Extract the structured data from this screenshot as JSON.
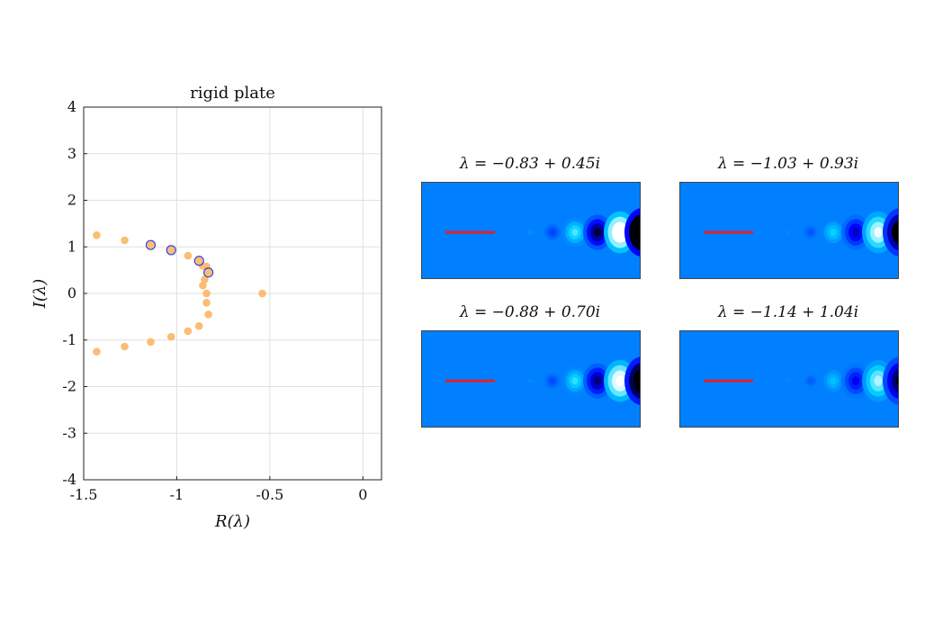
{
  "chart_data": [
    {
      "type": "scatter",
      "title": "rigid plate",
      "xlabel": "R(λ)",
      "ylabel": "I(λ)",
      "xlim": [
        -1.5,
        0.1
      ],
      "ylim": [
        -4,
        4
      ],
      "xticks": [
        -1.5,
        -1,
        -0.5,
        0
      ],
      "xtick_labels": [
        "-1.5",
        "-1",
        "-0.5",
        "0"
      ],
      "yticks": [
        4,
        3,
        2,
        1,
        0,
        -1,
        -2,
        -3,
        -4
      ],
      "ytick_labels": [
        "4",
        "3",
        "2",
        "1",
        "0",
        "-1",
        "-2",
        "-3",
        "-4"
      ],
      "grid": true,
      "series": [
        {
          "color": "#fbbd74",
          "x": [
            -1.43,
            -1.28,
            -1.14,
            -1.03,
            -0.94,
            -0.88,
            -0.86,
            -0.84,
            -0.83,
            -0.85,
            -0.84,
            -0.86,
            -0.84,
            -0.83,
            -0.88,
            -0.94,
            -1.03,
            -1.14,
            -1.28,
            -1.43,
            -0.54
          ],
          "y": [
            1.25,
            1.14,
            1.04,
            0.93,
            0.81,
            0.7,
            0.59,
            0.58,
            0.45,
            0.3,
            0.0,
            0.17,
            -0.2,
            -0.45,
            -0.7,
            -0.81,
            -0.93,
            -1.04,
            -1.14,
            -1.25,
            0.0
          ]
        },
        {
          "color": "#3540d8",
          "marker": "open-circle",
          "x": [
            -1.14,
            -1.03,
            -0.88,
            -0.83
          ],
          "y": [
            1.04,
            0.93,
            0.7,
            0.45
          ]
        }
      ]
    },
    {
      "type": "heatmap",
      "panels": [
        {
          "title": "λ = −0.83 + 0.45i",
          "peak": 0.92
        },
        {
          "title": "λ = −1.03 + 0.93i",
          "peak": 0.78
        },
        {
          "title": "λ = −0.88 + 0.70i",
          "peak": 0.86
        },
        {
          "title": "λ = −1.14 + 1.04i",
          "peak": 0.72
        }
      ]
    }
  ]
}
